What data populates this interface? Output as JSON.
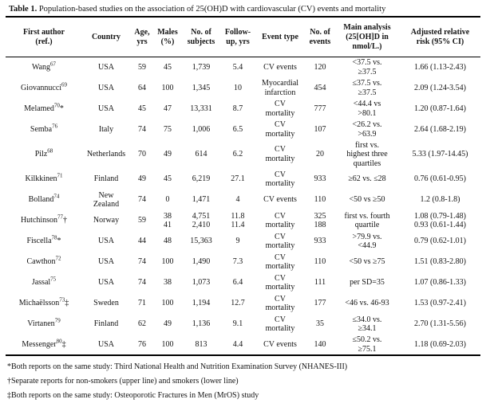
{
  "table": {
    "title_label": "Table 1.",
    "title_text": " Population-based studies on the association of 25(OH)D with cardiovascular (CV) events and mortality",
    "columns": [
      "First author\n(ref.)",
      "Country",
      "Age,\nyrs",
      "Males\n(%)",
      "No. of\nsubjects",
      "Follow-\nup, yrs",
      "Event type",
      "No. of\nevents",
      "Main analysis\n(25[OH]D in\nnmol/L.)",
      "Adjusted relative\nrisk (95% CI)"
    ],
    "rows": [
      {
        "author": "Wang",
        "ref": "67",
        "mark": "",
        "country": "USA",
        "age": "59",
        "males": "45",
        "subjects": "1,739",
        "followup": "5.4",
        "event_type": "CV events",
        "events": "120",
        "analysis": "<37.5 vs.\n≥37.5",
        "risk": "1.66 (1.13-2.43)"
      },
      {
        "author": "Giovannucci",
        "ref": "69",
        "mark": "",
        "country": "USA",
        "age": "64",
        "males": "100",
        "subjects": "1,345",
        "followup": "10",
        "event_type": "Myocardial\ninfarction",
        "events": "454",
        "analysis": "≤37.5 vs.\n≥37.5",
        "risk": "2.09 (1.24-3.54)"
      },
      {
        "author": "Melamed",
        "ref": "70",
        "mark": "*",
        "country": "USA",
        "age": "45",
        "males": "47",
        "subjects": "13,331",
        "followup": "8.7",
        "event_type": "CV\nmortality",
        "events": "777",
        "analysis": "<44.4 vs\n>80.1",
        "risk": "1.20 (0.87-1.64)"
      },
      {
        "author": "Semba",
        "ref": "76",
        "mark": "",
        "country": "Italy",
        "age": "74",
        "males": "75",
        "subjects": "1,006",
        "followup": "6.5",
        "event_type": "CV\nmortality",
        "events": "107",
        "analysis": "<26.2 vs.\n>63.9",
        "risk": "2.64 (1.68-2.19)"
      },
      {
        "author": "Pilz",
        "ref": "68",
        "mark": "",
        "country": "Netherlands",
        "age": "70",
        "males": "49",
        "subjects": "614",
        "followup": "6.2",
        "event_type": "CV\nmortality",
        "events": "20",
        "analysis": "first vs.\nhighest three\nquartiles",
        "risk": "5.33 (1.97-14.45)"
      },
      {
        "author": "Kilkkinen",
        "ref": "71",
        "mark": "",
        "country": "Finland",
        "age": "49",
        "males": "45",
        "subjects": "6,219",
        "followup": "27.1",
        "event_type": "CV\nmortality",
        "events": "933",
        "analysis": "≥62 vs. ≤28",
        "risk": "0.76 (0.61-0.95)"
      },
      {
        "author": "Bolland",
        "ref": "74",
        "mark": "",
        "country": "New\nZealand",
        "age": "74",
        "males": "0",
        "subjects": "1,471",
        "followup": "4",
        "event_type": "CV events",
        "events": "110",
        "analysis": "<50 vs ≥50",
        "risk": "1.2 (0.8-1.8)"
      },
      {
        "author": "Hutchinson",
        "ref": "77",
        "mark": "†",
        "country": "Norway",
        "age": "59",
        "males": "38\n41",
        "subjects": "4,751\n2,410",
        "followup": "11.8\n11.4",
        "event_type": "CV\nmortality",
        "events": "325\n188",
        "analysis": "first vs. fourth\nquartile",
        "risk": "1.08 (0.79-1.48)\n0.93 (0.61-1.44)"
      },
      {
        "author": "Fiscella",
        "ref": "78",
        "mark": "*",
        "country": "USA",
        "age": "44",
        "males": "48",
        "subjects": "15,363",
        "followup": "9",
        "event_type": "CV\nmortality",
        "events": "933",
        "analysis": ">79.9 vs.\n<44.9",
        "risk": "0.79 (0.62-1.01)"
      },
      {
        "author": "Cawthon",
        "ref": "72",
        "mark": "",
        "country": "USA",
        "age": "74",
        "males": "100",
        "subjects": "1,490",
        "followup": "7.3",
        "event_type": "CV\nmortality",
        "events": "110",
        "analysis": "<50 vs ≥75",
        "risk": "1.51 (0.83-2.80)"
      },
      {
        "author": "Jassal",
        "ref": "75",
        "mark": "",
        "country": "USA",
        "age": "74",
        "males": "38",
        "subjects": "1,073",
        "followup": "6.4",
        "event_type": "CV\nmortality",
        "events": "111",
        "analysis": "per SD=35",
        "risk": "1.07 (0.86-1.33)"
      },
      {
        "author": "Michaëlsson",
        "ref": "73",
        "mark": "‡",
        "country": "Sweden",
        "age": "71",
        "males": "100",
        "subjects": "1,194",
        "followup": "12.7",
        "event_type": "CV\nmortality",
        "events": "177",
        "analysis": "<46 vs. 46-93",
        "risk": "1.53 (0.97-2.41)"
      },
      {
        "author": "Virtanen",
        "ref": "79",
        "mark": "",
        "country": "Finland",
        "age": "62",
        "males": "49",
        "subjects": "1,136",
        "followup": "9.1",
        "event_type": "CV\nmortality",
        "events": "35",
        "analysis": "≤34.0 vs.\n≥34.1",
        "risk": "2.70 (1.31-5.56)"
      },
      {
        "author": "Messenger",
        "ref": "80",
        "mark": "‡",
        "country": "USA",
        "age": "76",
        "males": "100",
        "subjects": "813",
        "followup": "4.4",
        "event_type": "CV events",
        "events": "140",
        "analysis": "≤50.2 vs.\n≥75.1",
        "risk": "1.18 (0.69-2.03)"
      }
    ],
    "footnotes": [
      "*Both reports on the same study: Third National Health and Nutrition Examination Survey (NHANES-III)",
      "†Separate reports for non-smokers (upper line) and smokers (lower line)",
      "‡Both reports on the same study: Osteoporotic Fractures in Men (MrOS) study"
    ]
  }
}
